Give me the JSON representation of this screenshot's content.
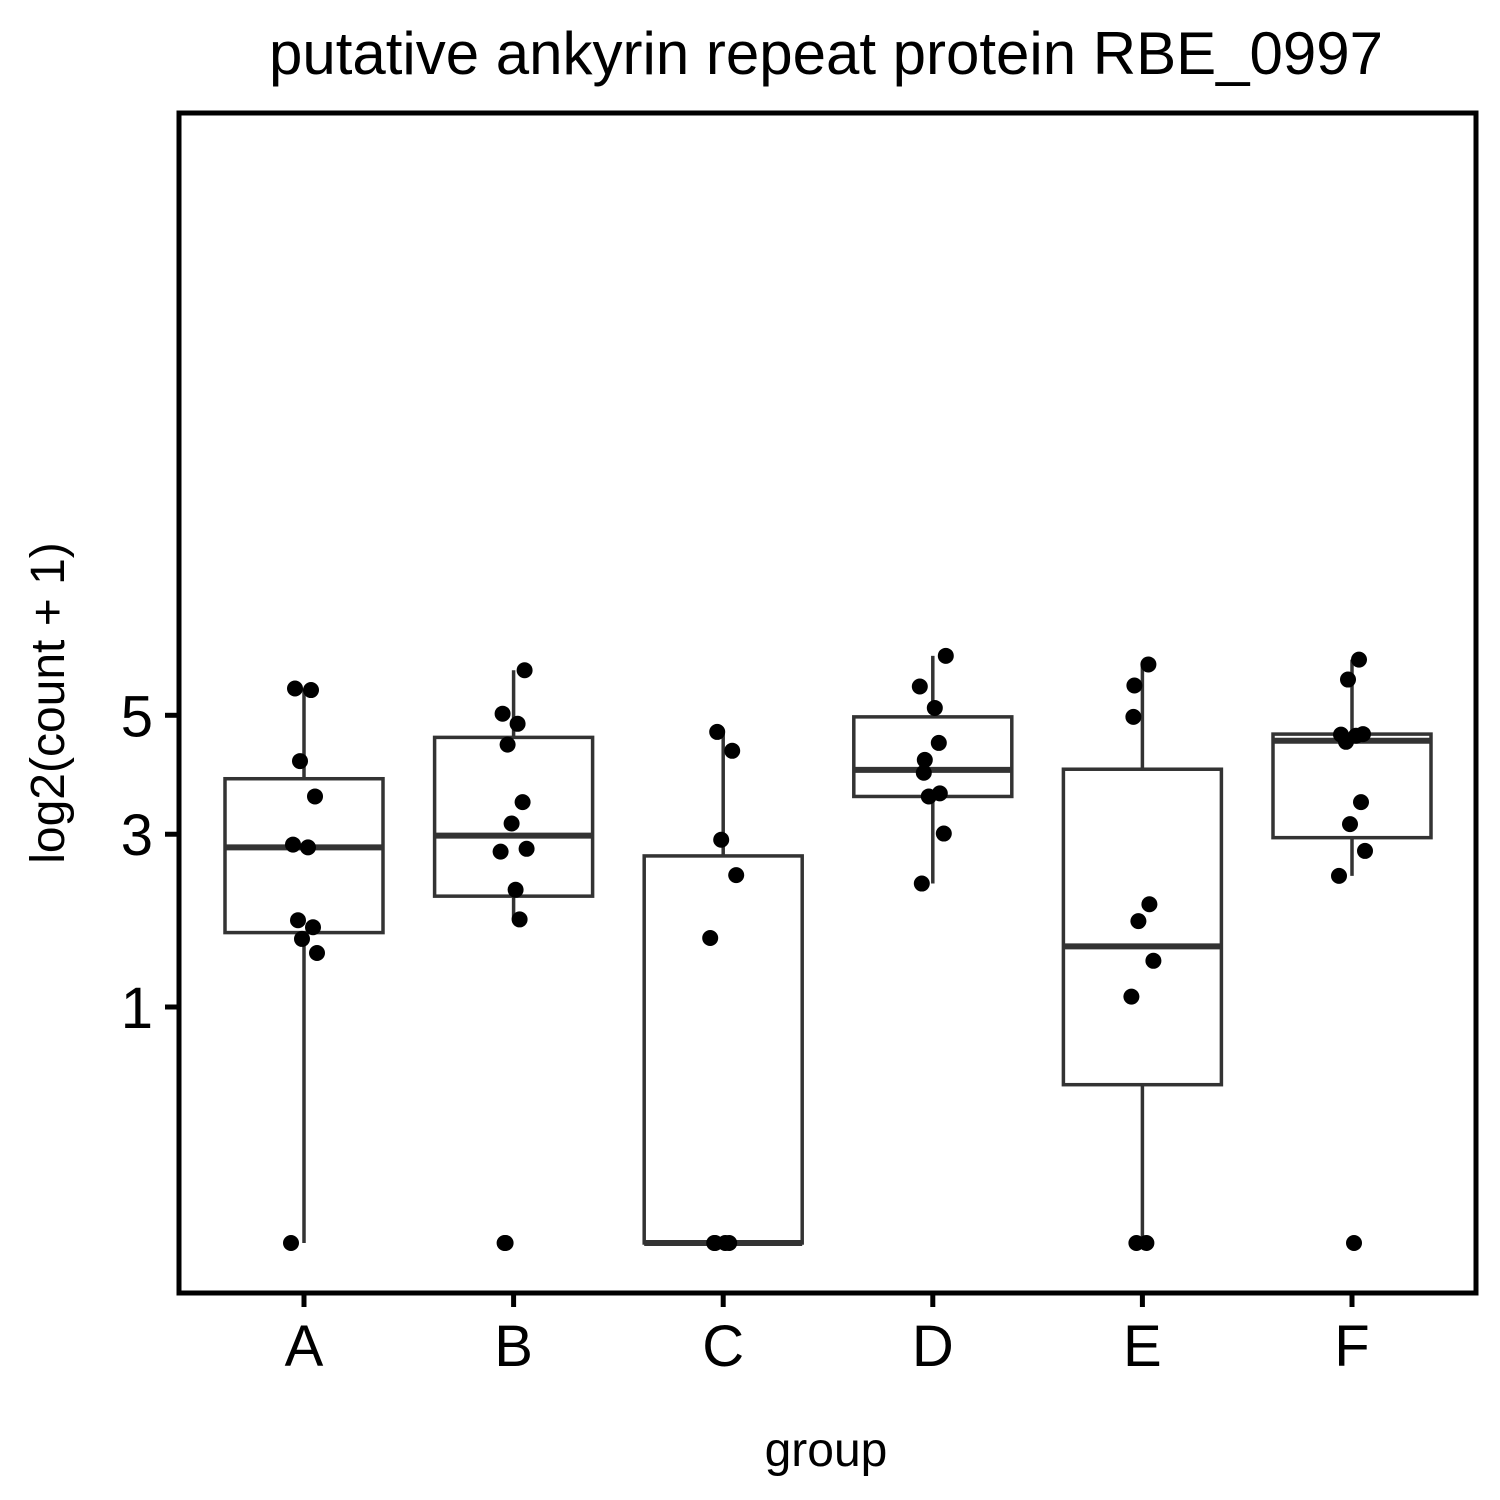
{
  "chart_data": {
    "type": "box",
    "title": "putative ankyrin repeat protein RBE_0997",
    "xlabel": "group",
    "ylabel": "log2(count + 1)",
    "categories": [
      "A",
      "B",
      "C",
      "D",
      "E",
      "F"
    ],
    "yscale": "sqrt",
    "ylim": [
      0,
      6.2
    ],
    "yticks": [
      1,
      3,
      5
    ],
    "grid": false,
    "legend": "none",
    "boxes": [
      {
        "group": "A",
        "q1": 1.73,
        "median": 2.81,
        "q3": 3.87,
        "whisker_low": 0,
        "whisker_high": 5.52
      },
      {
        "group": "B",
        "q1": 2.16,
        "median": 2.98,
        "q3": 4.59,
        "whisker_low": 1.88,
        "whisker_high": 5.89
      },
      {
        "group": "C",
        "q1": 0,
        "median": 0,
        "q3": 2.69,
        "whisker_low": 0,
        "whisker_high": 4.69
      },
      {
        "group": "D",
        "q1": 3.58,
        "median": 4.02,
        "q3": 4.97,
        "whisker_low": 2.32,
        "whisker_high": 6.19
      },
      {
        "group": "E",
        "q1": 0.45,
        "median": 1.58,
        "q3": 4.03,
        "whisker_low": 0,
        "whisker_high": 6.01
      },
      {
        "group": "F",
        "q1": 2.95,
        "median": 4.53,
        "q3": 4.65,
        "whisker_low": 2.42,
        "whisker_high": 6.11
      }
    ],
    "points": [
      {
        "group": "A",
        "values": [
          5.52,
          5.49,
          4.17,
          3.58,
          2.85,
          2.81,
          1.87,
          1.79,
          1.66,
          1.51,
          0
        ]
      },
      {
        "group": "B",
        "values": [
          5.89,
          5.03,
          4.84,
          4.46,
          3.49,
          3.16,
          2.79,
          2.75,
          2.24,
          1.88,
          0,
          0
        ]
      },
      {
        "group": "C",
        "values": [
          4.69,
          4.35,
          2.92,
          2.43,
          1.67,
          0,
          0,
          0,
          0
        ]
      },
      {
        "group": "D",
        "values": [
          6.19,
          5.56,
          5.14,
          4.49,
          4.19,
          3.97,
          3.63,
          3.58,
          3.01,
          2.32
        ]
      },
      {
        "group": "E",
        "values": [
          6.01,
          5.58,
          4.97,
          2.06,
          1.86,
          1.43,
          1.09,
          0,
          0
        ]
      },
      {
        "group": "F",
        "values": [
          6.11,
          5.7,
          4.65,
          4.64,
          4.62,
          4.51,
          3.49,
          3.15,
          2.76,
          2.42,
          0
        ]
      }
    ]
  }
}
